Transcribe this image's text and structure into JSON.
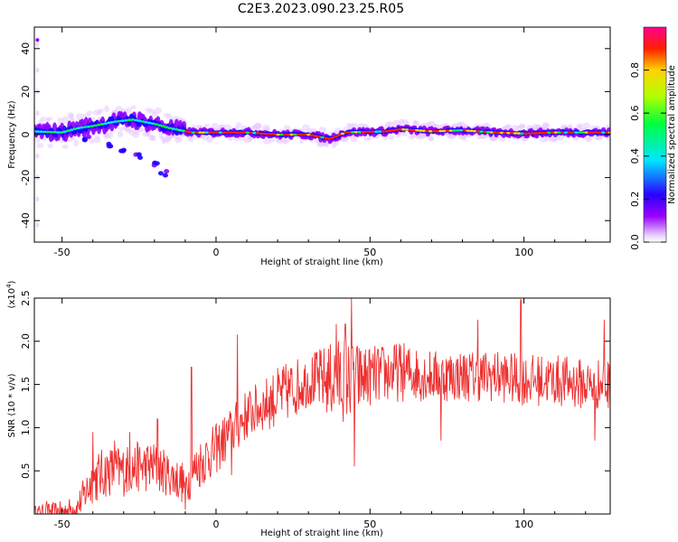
{
  "title": "C2E3.2023.090.23.25.R05",
  "chart_data": [
    {
      "type": "heatmap",
      "xlabel": "Height of straight line (km)",
      "ylabel": "Frequency (Hz)",
      "xlim": [
        -59,
        128
      ],
      "ylim": [
        -50,
        50
      ],
      "xticks": [
        -50,
        0,
        50,
        100
      ],
      "yticks": [
        -40,
        -20,
        0,
        20,
        40
      ],
      "colorbar": {
        "label": "Normalized spectral amplitude",
        "range": [
          0,
          1
        ],
        "ticks": [
          "0.0",
          "0.2",
          "0.4",
          "0.6",
          "0.8"
        ],
        "colors": [
          "#ffffff",
          "#e8c8ff",
          "#8c00ff",
          "#1a00ff",
          "#00e6ff",
          "#00ff40",
          "#b4ff00",
          "#ffd200",
          "#ff2000",
          "#ff0090"
        ]
      },
      "ridge": [
        {
          "x": -59,
          "y": 1.5
        },
        {
          "x": -50,
          "y": 1
        },
        {
          "x": -45,
          "y": 3
        },
        {
          "x": -40,
          "y": 4
        },
        {
          "x": -33,
          "y": 6
        },
        {
          "x": -27,
          "y": 7
        },
        {
          "x": -20,
          "y": 5
        },
        {
          "x": -15,
          "y": 3
        },
        {
          "x": -8,
          "y": 1
        },
        {
          "x": 0,
          "y": 1
        },
        {
          "x": 10,
          "y": 1
        },
        {
          "x": 20,
          "y": 0
        },
        {
          "x": 30,
          "y": 0
        },
        {
          "x": 37,
          "y": -2
        },
        {
          "x": 42,
          "y": 1
        },
        {
          "x": 55,
          "y": 1.5
        },
        {
          "x": 60,
          "y": 2.5
        },
        {
          "x": 70,
          "y": 1.5
        },
        {
          "x": 80,
          "y": 2
        },
        {
          "x": 90,
          "y": 1
        },
        {
          "x": 100,
          "y": 0.5
        },
        {
          "x": 110,
          "y": 1
        },
        {
          "x": 120,
          "y": 1
        },
        {
          "x": 128,
          "y": 1
        }
      ],
      "branch": [
        {
          "x": -42,
          "y": -2
        },
        {
          "x": -35,
          "y": -5
        },
        {
          "x": -30,
          "y": -8
        },
        {
          "x": -25,
          "y": -10
        },
        {
          "x": -20,
          "y": -14
        },
        {
          "x": -17,
          "y": -18
        }
      ]
    },
    {
      "type": "line",
      "xlabel": "Height of straight line (km)",
      "ylabel": "SNR (10 * v/v)",
      "y_multiplier": "(x10^4)",
      "xlim": [
        -59,
        128
      ],
      "ylim": [
        0,
        25000
      ],
      "xticks": [
        -50,
        0,
        50,
        100
      ],
      "yticks": [
        5000,
        10000,
        15000,
        20000,
        25000
      ],
      "ytick_labels": [
        "0.5",
        "1.0",
        "1.5",
        "2.0",
        "2.5"
      ],
      "color": "#ee3030",
      "envelope": {
        "x": [
          -59,
          -50,
          -45,
          -40,
          -35,
          -30,
          -25,
          -20,
          -15,
          -10,
          -5,
          0,
          5,
          10,
          15,
          20,
          25,
          30,
          35,
          40,
          45,
          50,
          60,
          70,
          80,
          90,
          100,
          110,
          120,
          128
        ],
        "mean": [
          200,
          300,
          800,
          4000,
          5000,
          5000,
          5500,
          5500,
          4500,
          3500,
          6000,
          7500,
          9500,
          11500,
          12500,
          13500,
          14500,
          15500,
          15500,
          15500,
          15500,
          16000,
          16500,
          16000,
          16000,
          16000,
          15500,
          15500,
          15000,
          15000
        ],
        "amp": [
          800,
          1200,
          1500,
          3000,
          3000,
          3000,
          3000,
          3000,
          2500,
          2500,
          3000,
          3000,
          3000,
          3000,
          3000,
          3500,
          3500,
          3000,
          4000,
          5000,
          4500,
          3500,
          3500,
          3000,
          3000,
          3000,
          3000,
          3000,
          3000,
          3000
        ]
      },
      "peaks": [
        {
          "x": -55,
          "y": 1500
        },
        {
          "x": -40,
          "y": 9500
        },
        {
          "x": -33,
          "y": 8500
        },
        {
          "x": -28,
          "y": 9500
        },
        {
          "x": -19,
          "y": 11000
        },
        {
          "x": -8,
          "y": 17000
        },
        {
          "x": 7,
          "y": 20800
        },
        {
          "x": 39,
          "y": 22000
        },
        {
          "x": 42,
          "y": 22000
        },
        {
          "x": 44,
          "y": 25000
        },
        {
          "x": 99,
          "y": 24800
        },
        {
          "x": 126,
          "y": 22500
        },
        {
          "x": 85,
          "y": 22500
        }
      ],
      "troughs": [
        {
          "x": 45,
          "y": 5500
        },
        {
          "x": 73,
          "y": 8500
        },
        {
          "x": 123,
          "y": 8500
        },
        {
          "x": 5,
          "y": 4500
        },
        {
          "x": -10,
          "y": 500
        }
      ]
    }
  ]
}
